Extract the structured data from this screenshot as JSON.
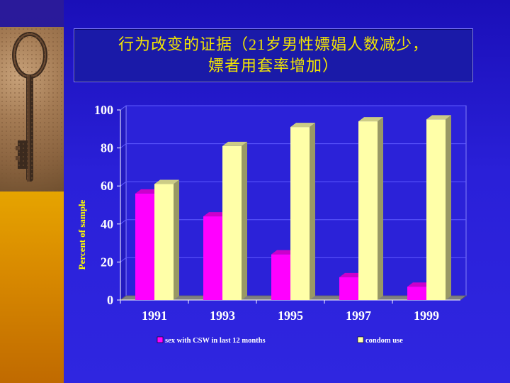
{
  "slide": {
    "title_line1": "行为改变的证据（21岁男性嫖娼人数减少，",
    "title_line2": "嫖者用套率增加）"
  },
  "chart_data": {
    "type": "bar",
    "categories": [
      "1991",
      "1993",
      "1995",
      "1997",
      "1999"
    ],
    "series": [
      {
        "name": "sex with CSW in last 12 months",
        "values": [
          56,
          44,
          24,
          12,
          7
        ],
        "color": "#ff00ff"
      },
      {
        "name": "condom use",
        "values": [
          61,
          81,
          91,
          94,
          95
        ],
        "color": "#ffffa8"
      }
    ],
    "ylabel": "Percent  of  sample",
    "xlabel": "",
    "ylim": [
      0,
      100
    ],
    "yticks": [
      0,
      20,
      40,
      60,
      80,
      100
    ],
    "grid": true,
    "legend_position": "bottom",
    "colors": {
      "text": "#ffffff",
      "ylabel": "#ffff00",
      "wall": "#2b22d8",
      "floor": "#808080",
      "gridline": "#5f5aff"
    }
  }
}
